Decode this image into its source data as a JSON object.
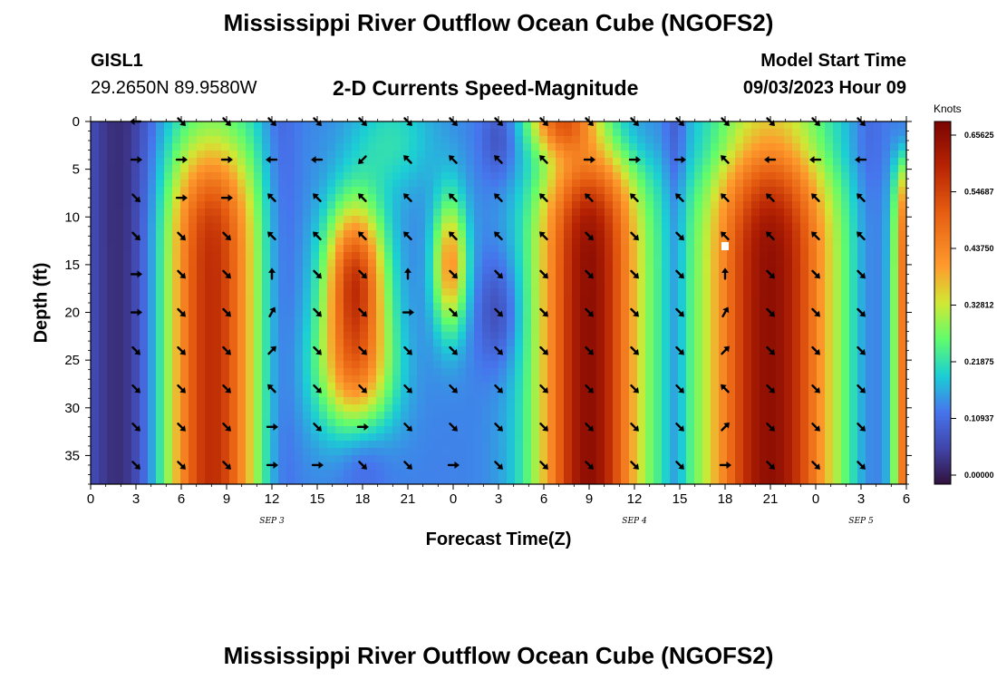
{
  "header": {
    "title": "Mississippi River Outflow Ocean Cube (NGOFS2)",
    "station_id": "GISL1",
    "station_coords": "29.2650N  89.9580W",
    "panel_title": "2-D Currents Speed-Magnitude",
    "start_label": "Model Start Time",
    "start_value": "09/03/2023 Hour 09"
  },
  "footer": {
    "title": "Mississippi River Outflow Ocean Cube (NGOFS2)"
  },
  "colors": {
    "low": "#30123b",
    "mid": "#a4fc3c",
    "high": "#7a0403"
  },
  "chart_data": {
    "type": "heatmap",
    "title": "2-D Currents Speed-Magnitude",
    "xlabel": "Forecast Time(Z)",
    "ylabel": "Depth (ft)",
    "x_tick_labels": [
      "0",
      "3",
      "6",
      "9",
      "12",
      "15",
      "18",
      "21",
      "0",
      "3",
      "6",
      "9",
      "12",
      "15",
      "18",
      "21",
      "0",
      "3",
      "6"
    ],
    "x_range_hours": [
      0,
      54
    ],
    "y_ticks": [
      0,
      5,
      10,
      15,
      20,
      25,
      30,
      35
    ],
    "y_range": [
      0,
      38
    ],
    "y_inverted": true,
    "date_labels": [
      {
        "text": "SEP 3",
        "hour": 12
      },
      {
        "text": "SEP 4",
        "hour": 36
      },
      {
        "text": "SEP 5",
        "hour": 51
      }
    ],
    "colorbar": {
      "unit": "Knots",
      "range": [
        0,
        0.7
      ],
      "tick_labels": [
        "0.00000",
        "0.10937",
        "0.21875",
        "0.32812",
        "0.43750",
        "0.54687",
        "0.65625"
      ]
    },
    "depth_levels_ft": [
      0,
      4,
      8,
      12,
      16,
      20,
      24,
      28,
      32,
      36
    ],
    "arrow_hours": [
      3,
      6,
      9,
      12,
      15,
      18,
      21,
      24,
      27,
      30,
      33,
      36,
      39,
      42,
      45,
      48,
      51
    ],
    "arrow_dirs_deg": [
      [
        180,
        315,
        315,
        315,
        315,
        315,
        315,
        315,
        315,
        315,
        315,
        315,
        315,
        315,
        315,
        315,
        315
      ],
      [
        0,
        0,
        0,
        180,
        180,
        225,
        135,
        135,
        135,
        135,
        0,
        0,
        0,
        135,
        180,
        180,
        180
      ],
      [
        315,
        0,
        0,
        135,
        135,
        135,
        135,
        135,
        135,
        135,
        135,
        135,
        135,
        135,
        135,
        135,
        135
      ],
      [
        315,
        315,
        315,
        135,
        135,
        135,
        135,
        135,
        135,
        135,
        315,
        315,
        315,
        135,
        135,
        135,
        135
      ],
      [
        0,
        315,
        315,
        90,
        315,
        315,
        90,
        315,
        315,
        315,
        315,
        315,
        315,
        90,
        315,
        315,
        315
      ],
      [
        0,
        315,
        315,
        60,
        315,
        315,
        0,
        315,
        315,
        315,
        315,
        315,
        315,
        60,
        315,
        315,
        315
      ],
      [
        315,
        315,
        315,
        45,
        315,
        315,
        315,
        315,
        315,
        315,
        315,
        315,
        315,
        45,
        315,
        315,
        315
      ],
      [
        315,
        315,
        315,
        135,
        315,
        315,
        315,
        315,
        315,
        315,
        315,
        315,
        315,
        135,
        315,
        315,
        315
      ],
      [
        315,
        315,
        315,
        0,
        315,
        0,
        315,
        315,
        315,
        315,
        315,
        315,
        315,
        45,
        315,
        315,
        315
      ],
      [
        315,
        315,
        315,
        0,
        0,
        315,
        315,
        0,
        315,
        315,
        315,
        315,
        315,
        0,
        315,
        315,
        315
      ]
    ]
  }
}
